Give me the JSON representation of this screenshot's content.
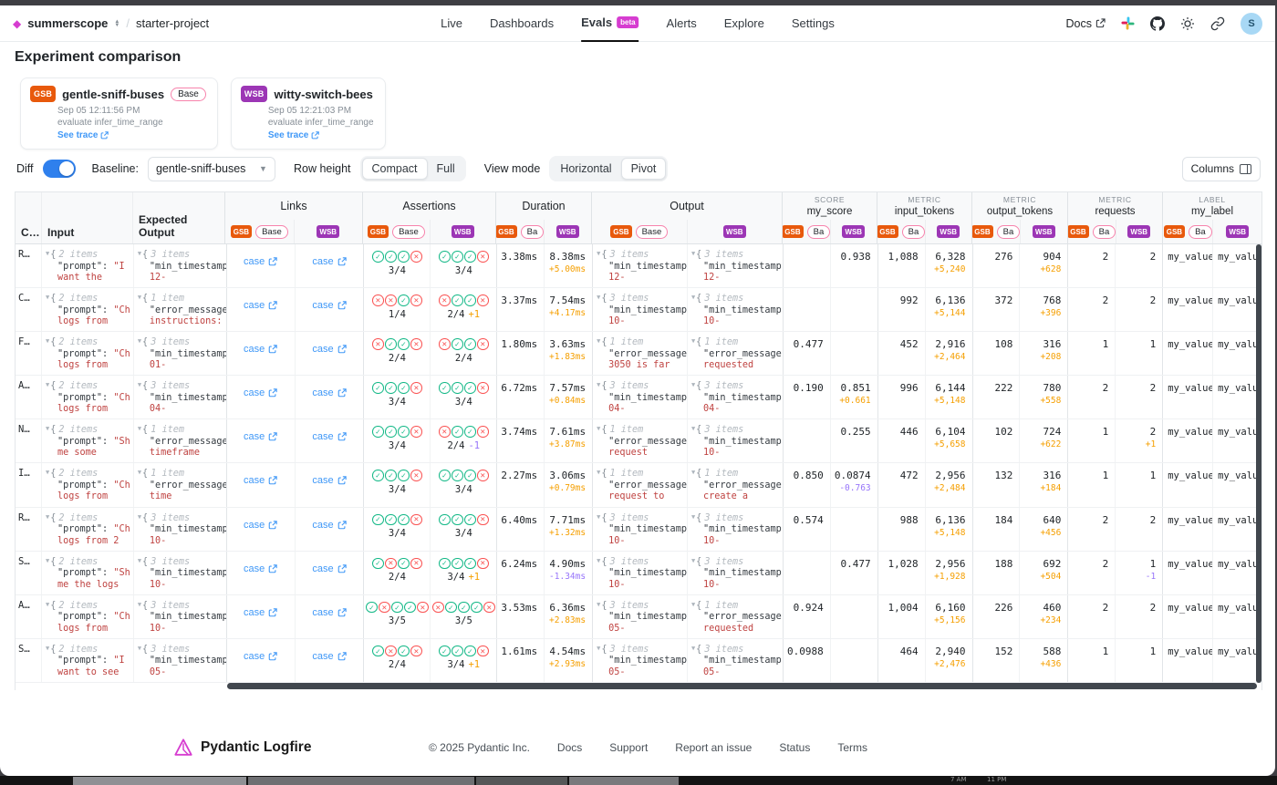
{
  "colors": {
    "brand_magenta": "#d63dd0",
    "gsb_orange": "#e8590c",
    "wsb_purple": "#9c36b5",
    "base_pill_border": "#f783ac",
    "link_blue": "#4098f7",
    "pass_green": "#12b886",
    "fail_red": "#fa5252",
    "diff_plus_orange": "#f59f00",
    "diff_minus_purple": "#9775fa",
    "toggle_blue": "#2f80ed",
    "code_red": "#bf4240"
  },
  "nav": {
    "org": "summerscope",
    "project": "starter-project",
    "tabs": [
      {
        "label": "Live"
      },
      {
        "label": "Dashboards"
      },
      {
        "label": "Evals",
        "badge": "beta",
        "active": true
      },
      {
        "label": "Alerts"
      },
      {
        "label": "Explore"
      },
      {
        "label": "Settings"
      }
    ],
    "docs_label": "Docs",
    "avatar_letter": "S"
  },
  "page_title": "Experiment comparison",
  "experiments": [
    {
      "abbr": "GSB",
      "name": "gentle-sniff-buses",
      "base_label": "Base",
      "timestamp": "Sep 05 12:11:56 PM",
      "task": "evaluate infer_time_range",
      "trace_label": "See trace"
    },
    {
      "abbr": "WSB",
      "name": "witty-switch-bees",
      "timestamp": "Sep 05 12:21:03 PM",
      "task": "evaluate infer_time_range",
      "trace_label": "See trace"
    }
  ],
  "controls": {
    "diff_label": "Diff",
    "diff_on": true,
    "baseline_label": "Baseline:",
    "baseline_value": "gentle-sniff-buses",
    "row_height": {
      "label": "Row height",
      "options": [
        "Compact",
        "Full"
      ],
      "selected": "Compact"
    },
    "view_mode": {
      "label": "View mode",
      "options": [
        "Horizontal",
        "Pivot"
      ],
      "selected": "Pivot"
    },
    "columns_button": "Columns"
  },
  "table": {
    "static_cols": [
      "C…",
      "Input",
      "Expected Output"
    ],
    "badges": {
      "gsb": "GSB",
      "wsb": "WSB"
    },
    "link_label": "case",
    "col_groups": [
      {
        "id": "links",
        "label": "Links",
        "pill": "Base"
      },
      {
        "id": "assertions",
        "label": "Assertions",
        "pill": "Base"
      },
      {
        "id": "duration",
        "label": "Duration",
        "pill": "Ba"
      },
      {
        "id": "output",
        "label": "Output",
        "pill": "Base"
      },
      {
        "id": "my_score",
        "kind": "SCORE",
        "label": "my_score",
        "pill": "Ba"
      },
      {
        "id": "input_tokens",
        "kind": "METRIC",
        "label": "input_tokens",
        "pill": "Ba"
      },
      {
        "id": "output_tokens",
        "kind": "METRIC",
        "label": "output_tokens",
        "pill": "Ba"
      },
      {
        "id": "requests",
        "kind": "METRIC",
        "label": "requests",
        "pill": "Ba"
      },
      {
        "id": "my_label",
        "kind": "LABEL",
        "label": "my_label",
        "pill": "Ba"
      }
    ],
    "rows": [
      {
        "case": "R…",
        "input": {
          "items": "2 items",
          "k": "\"prompt\": ",
          "v": "\"I",
          "cont": "want the"
        },
        "expected": {
          "items": "3 items",
          "k": "\"min_timestamp",
          "cont": "12-"
        },
        "assertions": {
          "gsb": {
            "icons": [
              "p",
              "p",
              "p",
              "f"
            ],
            "count": "3/4"
          },
          "wsb": {
            "icons": [
              "p",
              "p",
              "p",
              "f"
            ],
            "count": "3/4"
          }
        },
        "duration": {
          "gsb": "3.38ms",
          "wsb": "8.38ms",
          "diff": "+5.00ms"
        },
        "output": {
          "gsb": {
            "items": "3 items",
            "k": "\"min_timestamp",
            "cont": "12-"
          },
          "wsb": {
            "items": "3 items",
            "k": "\"min_timestamp",
            "cont": "12-"
          }
        },
        "my_score": {
          "gsb": "",
          "wsb": "0.938",
          "diff": ""
        },
        "input_tokens": {
          "gsb": "1,088",
          "wsb": "6,328",
          "diff": "+5,240"
        },
        "output_tokens": {
          "gsb": "276",
          "wsb": "904",
          "diff": "+628"
        },
        "requests": {
          "gsb": "2",
          "wsb": "2",
          "diff": ""
        },
        "my_label": {
          "gsb": "my_value_",
          "wsb": "my_value_"
        }
      },
      {
        "case": "C…",
        "input": {
          "items": "2 items",
          "k": "\"prompt\": ",
          "v": "\"Ch",
          "cont": "logs from"
        },
        "expected": {
          "items": "1 item",
          "k": "\"error_message",
          "cont": "instructions:"
        },
        "assertions": {
          "gsb": {
            "icons": [
              "f",
              "f",
              "p",
              "f"
            ],
            "count": "1/4"
          },
          "wsb": {
            "icons": [
              "f",
              "p",
              "p",
              "f"
            ],
            "count": "2/4",
            "diff": "+1"
          }
        },
        "duration": {
          "gsb": "3.37ms",
          "wsb": "7.54ms",
          "diff": "+4.17ms"
        },
        "output": {
          "gsb": {
            "items": "3 items",
            "k": "\"min_timestamp",
            "cont": "10-"
          },
          "wsb": {
            "items": "3 items",
            "k": "\"min_timestamp",
            "cont": "10-"
          }
        },
        "my_score": {
          "gsb": "",
          "wsb": "",
          "diff": ""
        },
        "input_tokens": {
          "gsb": "992",
          "wsb": "6,136",
          "diff": "+5,144"
        },
        "output_tokens": {
          "gsb": "372",
          "wsb": "768",
          "diff": "+396"
        },
        "requests": {
          "gsb": "2",
          "wsb": "2",
          "diff": ""
        },
        "my_label": {
          "gsb": "my_value_",
          "wsb": "my_value_"
        }
      },
      {
        "case": "F…",
        "input": {
          "items": "2 items",
          "k": "\"prompt\": ",
          "v": "\"Ch",
          "cont": "logs from"
        },
        "expected": {
          "items": "3 items",
          "k": "\"min_timestamp",
          "cont": "01-"
        },
        "assertions": {
          "gsb": {
            "icons": [
              "f",
              "p",
              "p",
              "f"
            ],
            "count": "2/4"
          },
          "wsb": {
            "icons": [
              "f",
              "p",
              "p",
              "f"
            ],
            "count": "2/4"
          }
        },
        "duration": {
          "gsb": "1.80ms",
          "wsb": "3.63ms",
          "diff": "+1.83ms"
        },
        "output": {
          "gsb": {
            "items": "1 item",
            "k": "\"error_message",
            "cont": "3050 is far"
          },
          "wsb": {
            "items": "1 item",
            "k": "\"error_message",
            "cont": "requested"
          }
        },
        "my_score": {
          "gsb": "0.477",
          "wsb": "",
          "diff": ""
        },
        "input_tokens": {
          "gsb": "452",
          "wsb": "2,916",
          "diff": "+2,464"
        },
        "output_tokens": {
          "gsb": "108",
          "wsb": "316",
          "diff": "+208"
        },
        "requests": {
          "gsb": "1",
          "wsb": "1",
          "diff": ""
        },
        "my_label": {
          "gsb": "my_value_",
          "wsb": "my_value_"
        }
      },
      {
        "case": "A…",
        "input": {
          "items": "2 items",
          "k": "\"prompt\": ",
          "v": "\"Ch",
          "cont": "logs from"
        },
        "expected": {
          "items": "3 items",
          "k": "\"min_timestamp",
          "cont": "04-"
        },
        "assertions": {
          "gsb": {
            "icons": [
              "p",
              "p",
              "p",
              "f"
            ],
            "count": "3/4"
          },
          "wsb": {
            "icons": [
              "p",
              "p",
              "p",
              "f"
            ],
            "count": "3/4"
          }
        },
        "duration": {
          "gsb": "6.72ms",
          "wsb": "7.57ms",
          "diff": "+0.84ms"
        },
        "output": {
          "gsb": {
            "items": "3 items",
            "k": "\"min_timestamp",
            "cont": "04-"
          },
          "wsb": {
            "items": "3 items",
            "k": "\"min_timestamp",
            "cont": "04-"
          }
        },
        "my_score": {
          "gsb": "0.190",
          "wsb": "0.851",
          "diff": "+0.661"
        },
        "input_tokens": {
          "gsb": "996",
          "wsb": "6,144",
          "diff": "+5,148"
        },
        "output_tokens": {
          "gsb": "222",
          "wsb": "780",
          "diff": "+558"
        },
        "requests": {
          "gsb": "2",
          "wsb": "2",
          "diff": ""
        },
        "my_label": {
          "gsb": "my_value_",
          "wsb": "my_value_"
        }
      },
      {
        "case": "N…",
        "input": {
          "items": "2 items",
          "k": "\"prompt\": ",
          "v": "\"Sh",
          "cont": "me some"
        },
        "expected": {
          "items": "1 item",
          "k": "\"error_message",
          "cont": "timeframe"
        },
        "assertions": {
          "gsb": {
            "icons": [
              "p",
              "p",
              "p",
              "f"
            ],
            "count": "3/4"
          },
          "wsb": {
            "icons": [
              "f",
              "p",
              "p",
              "f"
            ],
            "count": "2/4",
            "diff": "-1"
          }
        },
        "duration": {
          "gsb": "3.74ms",
          "wsb": "7.61ms",
          "diff": "+3.87ms"
        },
        "output": {
          "gsb": {
            "items": "1 item",
            "k": "\"error_message",
            "cont": "request"
          },
          "wsb": {
            "items": "3 items",
            "k": "\"min_timestamp",
            "cont": "10-"
          }
        },
        "my_score": {
          "gsb": "",
          "wsb": "0.255",
          "diff": ""
        },
        "input_tokens": {
          "gsb": "446",
          "wsb": "6,104",
          "diff": "+5,658"
        },
        "output_tokens": {
          "gsb": "102",
          "wsb": "724",
          "diff": "+622"
        },
        "requests": {
          "gsb": "1",
          "wsb": "2",
          "diff": "+1"
        },
        "my_label": {
          "gsb": "my_value_",
          "wsb": "my_value_"
        }
      },
      {
        "case": "I…",
        "input": {
          "items": "2 items",
          "k": "\"prompt\": ",
          "v": "\"Ch",
          "cont": "logs from"
        },
        "expected": {
          "items": "1 item",
          "k": "\"error_message",
          "cont": "time"
        },
        "assertions": {
          "gsb": {
            "icons": [
              "p",
              "p",
              "p",
              "f"
            ],
            "count": "3/4"
          },
          "wsb": {
            "icons": [
              "p",
              "p",
              "p",
              "f"
            ],
            "count": "3/4"
          }
        },
        "duration": {
          "gsb": "2.27ms",
          "wsb": "3.06ms",
          "diff": "+0.79ms"
        },
        "output": {
          "gsb": {
            "items": "1 item",
            "k": "\"error_message",
            "cont": "request to"
          },
          "wsb": {
            "items": "1 item",
            "k": "\"error_message",
            "cont": "create a"
          }
        },
        "my_score": {
          "gsb": "0.850",
          "wsb": "0.0874",
          "diff": "-0.763"
        },
        "input_tokens": {
          "gsb": "472",
          "wsb": "2,956",
          "diff": "+2,484"
        },
        "output_tokens": {
          "gsb": "132",
          "wsb": "316",
          "diff": "+184"
        },
        "requests": {
          "gsb": "1",
          "wsb": "1",
          "diff": ""
        },
        "my_label": {
          "gsb": "my_value_",
          "wsb": "my_value_"
        }
      },
      {
        "case": "R…",
        "input": {
          "items": "2 items",
          "k": "\"prompt\": ",
          "v": "\"Ch",
          "cont": "logs from 2"
        },
        "expected": {
          "items": "3 items",
          "k": "\"min_timestamp",
          "cont": "10-"
        },
        "assertions": {
          "gsb": {
            "icons": [
              "p",
              "p",
              "p",
              "f"
            ],
            "count": "3/4"
          },
          "wsb": {
            "icons": [
              "p",
              "p",
              "p",
              "f"
            ],
            "count": "3/4"
          }
        },
        "duration": {
          "gsb": "6.40ms",
          "wsb": "7.71ms",
          "diff": "+1.32ms"
        },
        "output": {
          "gsb": {
            "items": "3 items",
            "k": "\"min_timestamp",
            "cont": "10-"
          },
          "wsb": {
            "items": "3 items",
            "k": "\"min_timestamp",
            "cont": "10-"
          }
        },
        "my_score": {
          "gsb": "0.574",
          "wsb": "",
          "diff": ""
        },
        "input_tokens": {
          "gsb": "988",
          "wsb": "6,136",
          "diff": "+5,148"
        },
        "output_tokens": {
          "gsb": "184",
          "wsb": "640",
          "diff": "+456"
        },
        "requests": {
          "gsb": "2",
          "wsb": "2",
          "diff": ""
        },
        "my_label": {
          "gsb": "my_value_",
          "wsb": "my_value_"
        }
      },
      {
        "case": "S…",
        "input": {
          "items": "2 items",
          "k": "\"prompt\": ",
          "v": "\"Sh",
          "cont": "me the logs"
        },
        "expected": {
          "items": "3 items",
          "k": "\"min_timestamp",
          "cont": "10-"
        },
        "assertions": {
          "gsb": {
            "icons": [
              "p",
              "f",
              "p",
              "f"
            ],
            "count": "2/4"
          },
          "wsb": {
            "icons": [
              "p",
              "p",
              "p",
              "f"
            ],
            "count": "3/4",
            "diff": "+1"
          }
        },
        "duration": {
          "gsb": "6.24ms",
          "wsb": "4.90ms",
          "diff": "-1.34ms"
        },
        "output": {
          "gsb": {
            "items": "3 items",
            "k": "\"min_timestamp",
            "cont": "10-"
          },
          "wsb": {
            "items": "3 items",
            "k": "\"min_timestamp",
            "cont": "10-"
          }
        },
        "my_score": {
          "gsb": "",
          "wsb": "0.477",
          "diff": ""
        },
        "input_tokens": {
          "gsb": "1,028",
          "wsb": "2,956",
          "diff": "+1,928"
        },
        "output_tokens": {
          "gsb": "188",
          "wsb": "692",
          "diff": "+504"
        },
        "requests": {
          "gsb": "2",
          "wsb": "1",
          "diff": "-1"
        },
        "my_label": {
          "gsb": "my_value_",
          "wsb": "my_value_"
        }
      },
      {
        "case": "A…",
        "input": {
          "items": "2 items",
          "k": "\"prompt\": ",
          "v": "\"Ch",
          "cont": "logs from"
        },
        "expected": {
          "items": "3 items",
          "k": "\"min_timestamp",
          "cont": "10-"
        },
        "assertions": {
          "gsb": {
            "icons": [
              "p",
              "f",
              "p",
              "p",
              "f"
            ],
            "count": "3/5"
          },
          "wsb": {
            "icons": [
              "f",
              "p",
              "p",
              "p",
              "f"
            ],
            "count": "3/5"
          }
        },
        "duration": {
          "gsb": "3.53ms",
          "wsb": "6.36ms",
          "diff": "+2.83ms"
        },
        "output": {
          "gsb": {
            "items": "3 items",
            "k": "\"min_timestamp",
            "cont": "05-"
          },
          "wsb": {
            "items": "1 item",
            "k": "\"error_message",
            "cont": "requested"
          }
        },
        "my_score": {
          "gsb": "0.924",
          "wsb": "",
          "diff": ""
        },
        "input_tokens": {
          "gsb": "1,004",
          "wsb": "6,160",
          "diff": "+5,156"
        },
        "output_tokens": {
          "gsb": "226",
          "wsb": "460",
          "diff": "+234"
        },
        "requests": {
          "gsb": "2",
          "wsb": "2",
          "diff": ""
        },
        "my_label": {
          "gsb": "my_value_",
          "wsb": "my_value_"
        }
      },
      {
        "case": "S…",
        "input": {
          "items": "2 items",
          "k": "\"prompt\": ",
          "v": "\"I",
          "cont": "want to see"
        },
        "expected": {
          "items": "3 items",
          "k": "\"min_timestamp",
          "cont": "05-"
        },
        "assertions": {
          "gsb": {
            "icons": [
              "p",
              "f",
              "p",
              "f"
            ],
            "count": "2/4"
          },
          "wsb": {
            "icons": [
              "p",
              "p",
              "p",
              "f"
            ],
            "count": "3/4",
            "diff": "+1"
          }
        },
        "duration": {
          "gsb": "1.61ms",
          "wsb": "4.54ms",
          "diff": "+2.93ms"
        },
        "output": {
          "gsb": {
            "items": "3 items",
            "k": "\"min_timestamp",
            "cont": "05-"
          },
          "wsb": {
            "items": "3 items",
            "k": "\"min_timestamp",
            "cont": "05-"
          }
        },
        "my_score": {
          "gsb": "0.0988",
          "wsb": "",
          "diff": ""
        },
        "input_tokens": {
          "gsb": "464",
          "wsb": "2,940",
          "diff": "+2,476"
        },
        "output_tokens": {
          "gsb": "152",
          "wsb": "588",
          "diff": "+436"
        },
        "requests": {
          "gsb": "1",
          "wsb": "1",
          "diff": ""
        },
        "my_label": {
          "gsb": "my_value_",
          "wsb": "my_value_"
        }
      }
    ]
  },
  "footer": {
    "brand": "Pydantic Logfire",
    "links": [
      "© 2025 Pydantic Inc.",
      "Docs",
      "Support",
      "Report an issue",
      "Status",
      "Terms"
    ]
  },
  "taskbar": {
    "times": [
      "7 AM",
      "11 PM"
    ]
  }
}
